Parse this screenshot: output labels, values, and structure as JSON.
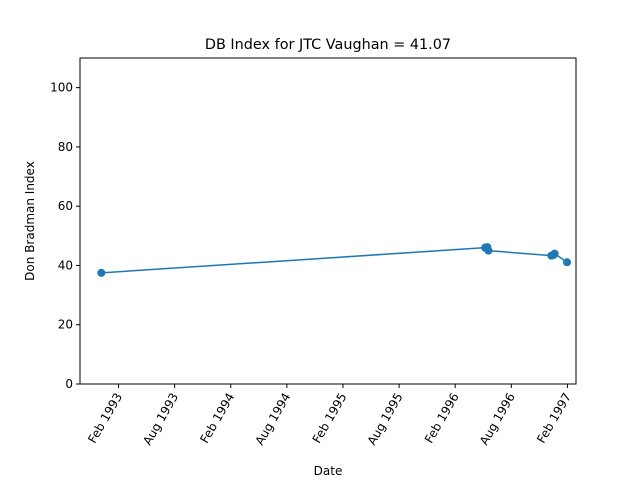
{
  "chart_data": {
    "type": "line",
    "title": "DB Index for JTC Vaughan = 41.07",
    "xlabel": "Date",
    "ylabel": "Don Bradman Index",
    "ylim": [
      0,
      110
    ],
    "yticks": [
      0,
      20,
      40,
      60,
      80,
      100
    ],
    "xlim_months": [
      1992.74,
      1997.16
    ],
    "xticks": [
      {
        "label": "Feb 1993",
        "value": 1993.0833
      },
      {
        "label": "Aug 1993",
        "value": 1993.5833
      },
      {
        "label": "Feb 1994",
        "value": 1994.0833
      },
      {
        "label": "Aug 1994",
        "value": 1994.5833
      },
      {
        "label": "Feb 1995",
        "value": 1995.0833
      },
      {
        "label": "Aug 1995",
        "value": 1995.5833
      },
      {
        "label": "Feb 1996",
        "value": 1996.0833
      },
      {
        "label": "Aug 1996",
        "value": 1996.5833
      },
      {
        "label": "Feb 1997",
        "value": 1997.0833
      }
    ],
    "series": [
      {
        "name": "DB Index",
        "color": "#1f77b4",
        "x": [
          1992.93,
          1996.35,
          1996.37,
          1996.38,
          1996.94,
          1996.96,
          1996.97,
          1997.08
        ],
        "y": [
          37.5,
          46.0,
          46.2,
          45.0,
          43.3,
          43.5,
          44.0,
          41.07
        ]
      }
    ],
    "grid": false
  }
}
